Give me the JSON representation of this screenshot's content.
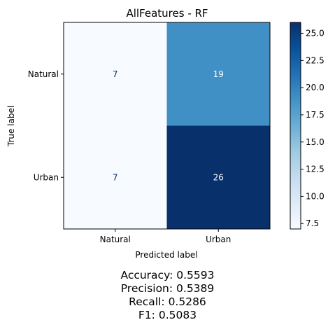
{
  "chart_data": {
    "type": "heatmap",
    "title": "AllFeatures - RF",
    "xlabel": "Predicted label",
    "ylabel": "True label",
    "x_categories": [
      "Natural",
      "Urban"
    ],
    "y_categories": [
      "Natural",
      "Urban"
    ],
    "matrix": [
      [
        7,
        19
      ],
      [
        7,
        26
      ]
    ],
    "colormap": "Blues",
    "color_range": [
      7,
      26
    ],
    "colorbar_ticks": [
      "7.5",
      "10.0",
      "12.5",
      "15.0",
      "17.5",
      "20.0",
      "22.5",
      "25.0"
    ],
    "colorbar_tick_values": [
      7.5,
      10.0,
      12.5,
      15.0,
      17.5,
      20.0,
      22.5,
      25.0
    ],
    "grid": false
  },
  "metrics": {
    "accuracy": "Accuracy: 0.5593",
    "precision": "Precision: 0.5389",
    "recall": "Recall: 0.5286",
    "f1": "F1: 0.5083"
  }
}
